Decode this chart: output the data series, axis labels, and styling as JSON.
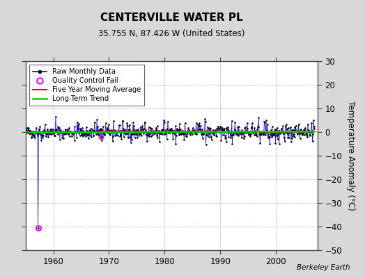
{
  "title": "CENTERVILLE WATER PL",
  "subtitle": "35.755 N, 87.426 W (United States)",
  "ylabel": "Temperature Anomaly (°C)",
  "attribution": "Berkeley Earth",
  "xlim": [
    1955.0,
    2007.5
  ],
  "ylim": [
    -50,
    30
  ],
  "yticks": [
    -50,
    -40,
    -30,
    -20,
    -10,
    0,
    10,
    20,
    30
  ],
  "xticks": [
    1960,
    1970,
    1980,
    1990,
    2000
  ],
  "bg_color": "#d8d8d8",
  "plot_bg_color": "#ffffff",
  "grid_color": "#b0b0b0",
  "raw_color": "#0000ff",
  "raw_marker_color": "#000000",
  "qc_fail_color": "#ff00ff",
  "moving_avg_color": "#ff0000",
  "trend_color": "#00cc00",
  "seed": 42,
  "start_year": 1955,
  "end_year": 2006,
  "qc_fail_year1": 1957.25,
  "qc_fail_val1": -40.5,
  "qc_fail_year2": 1968.6,
  "qc_fail_val2": -2.2
}
